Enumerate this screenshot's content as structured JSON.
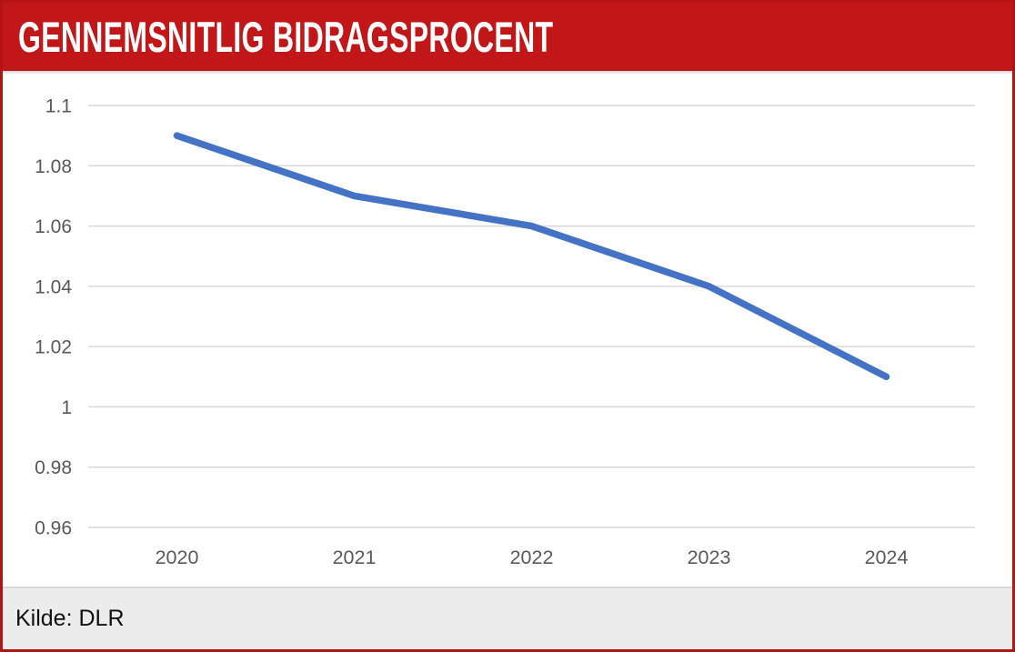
{
  "header": {
    "title": "GENNEMSNITLIG BIDRAGSPROCENT",
    "background_color": "#c11718",
    "text_color": "#ffffff"
  },
  "footer": {
    "source_label": "Kilde: DLR",
    "background_color": "#ececec"
  },
  "chart_data": {
    "type": "line",
    "title": "GENNEMSNITLIG BIDRAGSPROCENT",
    "categories": [
      "2020",
      "2021",
      "2022",
      "2023",
      "2024"
    ],
    "values": [
      1.09,
      1.07,
      1.06,
      1.04,
      1.01
    ],
    "xlabel": "",
    "ylabel": "",
    "ylim": [
      0.96,
      1.1
    ],
    "ytick_step": 0.02,
    "ytick_labels": [
      "1.1",
      "1.08",
      "1.06",
      "1.04",
      "1.02",
      "1",
      "0.98",
      "0.96"
    ],
    "grid": true,
    "legend": "none",
    "line_color": "#4472c4",
    "gridline_color": "#d9d9d9",
    "axis_label_color": "#595959"
  }
}
